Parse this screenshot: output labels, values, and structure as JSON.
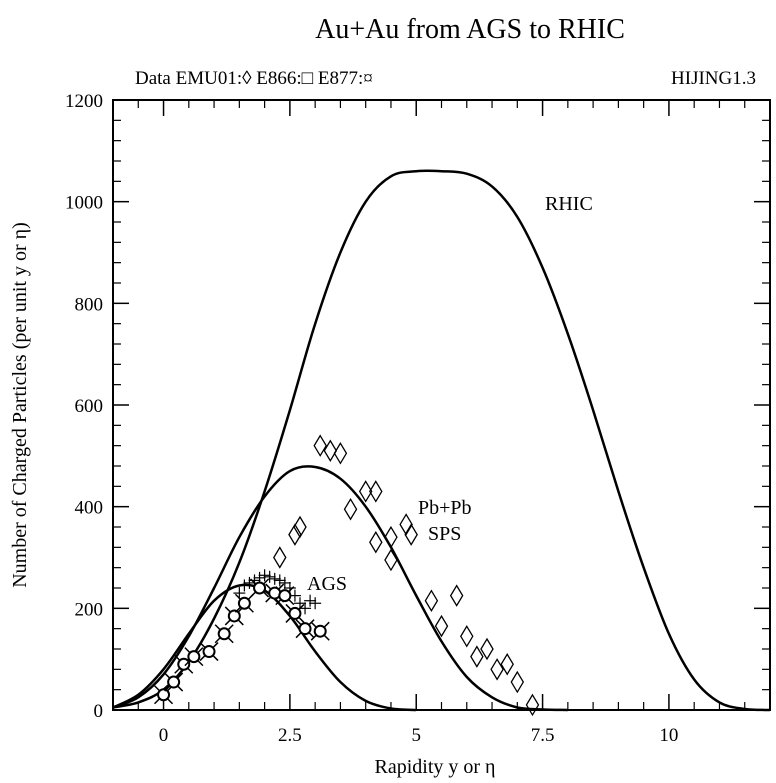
{
  "chart_data": {
    "type": "line",
    "title": "Au+Au  from  AGS to  RHIC",
    "subtitle_left": "Data EMU01:◊  E866:□  E877:¤",
    "subtitle_right": "HIJING1.3",
    "xlabel": "Rapidity y or η",
    "ylabel": "Number of Charged Particles (per unit y or η)",
    "xlim": [
      -1,
      12
    ],
    "ylim": [
      0,
      1200
    ],
    "x_ticks": [
      0,
      2.5,
      5,
      7.5,
      10
    ],
    "x_tick_labels": [
      "0",
      "2.5",
      "5",
      "7.5",
      "10"
    ],
    "y_ticks": [
      0,
      200,
      400,
      600,
      800,
      1000,
      1200
    ],
    "y_tick_labels": [
      "0",
      "200",
      "400",
      "600",
      "800",
      "1000",
      "1200"
    ],
    "series": [
      {
        "name": "RHIC",
        "x": [
          -1.0,
          -0.5,
          0.0,
          0.5,
          1.0,
          1.5,
          2.0,
          2.5,
          3.0,
          3.5,
          4.0,
          4.5,
          5.0,
          5.5,
          6.0,
          6.5,
          7.0,
          7.5,
          8.0,
          8.5,
          9.0,
          9.5,
          10.0,
          10.5,
          11.0,
          11.5,
          12.0
        ],
        "y": [
          5,
          15,
          40,
          95,
          180,
          290,
          430,
          590,
          760,
          900,
          1000,
          1050,
          1060,
          1060,
          1055,
          1030,
          970,
          870,
          740,
          590,
          430,
          280,
          150,
          60,
          15,
          2,
          0
        ]
      },
      {
        "name": "Pb+Pb SPS",
        "x": [
          -1.0,
          -0.5,
          0.0,
          0.5,
          1.0,
          1.5,
          2.0,
          2.5,
          3.0,
          3.5,
          4.0,
          4.5,
          5.0,
          5.5,
          6.0,
          6.5,
          7.0,
          7.5,
          8.0
        ],
        "y": [
          5,
          25,
          70,
          145,
          240,
          340,
          420,
          470,
          478,
          455,
          400,
          320,
          225,
          135,
          65,
          25,
          5,
          1,
          0
        ]
      },
      {
        "name": "AGS",
        "x": [
          -1.0,
          -0.5,
          0.0,
          0.5,
          1.0,
          1.5,
          2.0,
          2.5,
          3.0,
          3.5,
          4.0,
          4.5,
          5.0
        ],
        "y": [
          5,
          30,
          80,
          150,
          215,
          245,
          235,
          185,
          115,
          55,
          18,
          3,
          0
        ]
      }
    ],
    "data_points": {
      "EMU01_diamond": [
        [
          2.3,
          300
        ],
        [
          2.6,
          345
        ],
        [
          2.7,
          360
        ],
        [
          3.1,
          520
        ],
        [
          3.3,
          510
        ],
        [
          3.5,
          505
        ],
        [
          3.7,
          395
        ],
        [
          4.0,
          430
        ],
        [
          4.2,
          430
        ],
        [
          4.2,
          330
        ],
        [
          4.5,
          295
        ],
        [
          4.5,
          340
        ],
        [
          4.8,
          365
        ],
        [
          4.9,
          345
        ],
        [
          5.3,
          215
        ],
        [
          5.5,
          165
        ],
        [
          5.8,
          225
        ],
        [
          6.0,
          145
        ],
        [
          6.2,
          105
        ],
        [
          6.4,
          120
        ],
        [
          6.6,
          80
        ],
        [
          6.8,
          90
        ],
        [
          7.0,
          55
        ],
        [
          7.3,
          10
        ]
      ],
      "E866_circle": [
        [
          0.0,
          30
        ],
        [
          0.2,
          55
        ],
        [
          0.4,
          90
        ],
        [
          0.6,
          105
        ],
        [
          0.9,
          115
        ],
        [
          1.2,
          150
        ],
        [
          1.4,
          185
        ],
        [
          1.6,
          210
        ],
        [
          1.9,
          240
        ],
        [
          2.2,
          230
        ],
        [
          2.4,
          225
        ],
        [
          2.6,
          190
        ],
        [
          2.8,
          160
        ],
        [
          3.1,
          155
        ]
      ],
      "E877_cross": [
        [
          1.5,
          230
        ],
        [
          1.6,
          245
        ],
        [
          1.7,
          250
        ],
        [
          1.8,
          255
        ],
        [
          1.9,
          260
        ],
        [
          2.0,
          265
        ],
        [
          2.1,
          262
        ],
        [
          2.2,
          258
        ],
        [
          2.3,
          255
        ],
        [
          2.4,
          250
        ],
        [
          2.5,
          240
        ],
        [
          2.6,
          225
        ],
        [
          2.7,
          210
        ],
        [
          2.8,
          200
        ],
        [
          2.9,
          215
        ],
        [
          3.0,
          210
        ]
      ]
    },
    "annotations": [
      "RHIC",
      "Pb+Pb",
      "SPS",
      "AGS"
    ],
    "grid": false,
    "legend": "none"
  }
}
